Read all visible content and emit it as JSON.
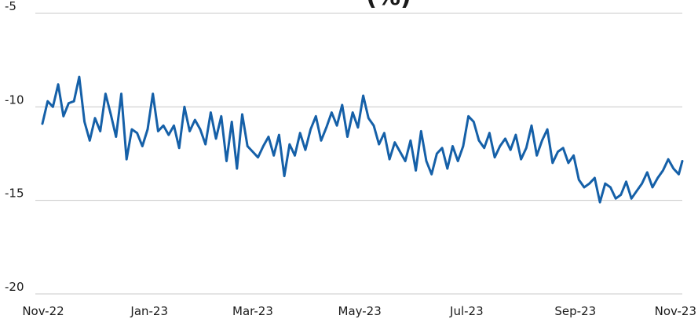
{
  "chart_data": {
    "type": "line",
    "title_fragment": "(%)",
    "xlabel": "",
    "ylabel": "",
    "ylim": [
      -20,
      -5
    ],
    "yticks": [
      -5,
      -10,
      -15,
      -20
    ],
    "ytick_labels": [
      "-5",
      "-10",
      "-15",
      "-20"
    ],
    "xlim": [
      "2022-11-01",
      "2023-11-01"
    ],
    "xticks": [
      "2022-11-01",
      "2023-01-01",
      "2023-03-01",
      "2023-05-01",
      "2023-07-01",
      "2023-09-01",
      "2023-11-01"
    ],
    "xtick_labels": [
      "Nov-22",
      "Jan-23",
      "Mar-23",
      "May-23",
      "Jul-23",
      "Sep-23",
      "Nov-23"
    ],
    "grid": true,
    "series": [
      {
        "color": "#1560a8",
        "x": [
          "2022-11-01",
          "2022-11-04",
          "2022-11-07",
          "2022-11-10",
          "2022-11-13",
          "2022-11-16",
          "2022-11-19",
          "2022-11-22",
          "2022-11-25",
          "2022-11-28",
          "2022-12-01",
          "2022-12-04",
          "2022-12-07",
          "2022-12-10",
          "2022-12-13",
          "2022-12-16",
          "2022-12-19",
          "2022-12-22",
          "2022-12-25",
          "2022-12-28",
          "2022-12-31",
          "2023-01-03",
          "2023-01-06",
          "2023-01-09",
          "2023-01-12",
          "2023-01-15",
          "2023-01-18",
          "2023-01-21",
          "2023-01-24",
          "2023-01-27",
          "2023-01-30",
          "2023-02-02",
          "2023-02-05",
          "2023-02-08",
          "2023-02-11",
          "2023-02-14",
          "2023-02-17",
          "2023-02-20",
          "2023-02-23",
          "2023-02-26",
          "2023-03-01",
          "2023-03-04",
          "2023-03-07",
          "2023-03-10",
          "2023-03-13",
          "2023-03-16",
          "2023-03-19",
          "2023-03-22",
          "2023-03-25",
          "2023-03-28",
          "2023-03-31",
          "2023-04-03",
          "2023-04-06",
          "2023-04-09",
          "2023-04-12",
          "2023-04-15",
          "2023-04-18",
          "2023-04-21",
          "2023-04-24",
          "2023-04-27",
          "2023-04-30",
          "2023-05-03",
          "2023-05-06",
          "2023-05-09",
          "2023-05-12",
          "2023-05-15",
          "2023-05-18",
          "2023-05-21",
          "2023-05-24",
          "2023-05-27",
          "2023-05-30",
          "2023-06-02",
          "2023-06-05",
          "2023-06-08",
          "2023-06-11",
          "2023-06-14",
          "2023-06-17",
          "2023-06-20",
          "2023-06-23",
          "2023-06-26",
          "2023-06-29",
          "2023-07-02",
          "2023-07-05",
          "2023-07-08",
          "2023-07-11",
          "2023-07-14",
          "2023-07-17",
          "2023-07-20",
          "2023-07-23",
          "2023-07-26",
          "2023-07-29",
          "2023-08-01",
          "2023-08-04",
          "2023-08-07",
          "2023-08-10",
          "2023-08-13",
          "2023-08-16",
          "2023-08-19",
          "2023-08-22",
          "2023-08-25",
          "2023-08-28",
          "2023-08-31",
          "2023-09-03",
          "2023-09-06",
          "2023-09-09",
          "2023-09-12",
          "2023-09-15",
          "2023-09-18",
          "2023-09-21",
          "2023-09-24",
          "2023-09-27",
          "2023-09-30",
          "2023-10-03",
          "2023-10-06",
          "2023-10-09",
          "2023-10-12",
          "2023-10-15",
          "2023-10-18",
          "2023-10-21",
          "2023-10-24",
          "2023-10-27",
          "2023-10-30",
          "2023-11-01"
        ],
        "values": [
          -10.9,
          -9.7,
          -10.0,
          -8.8,
          -10.5,
          -9.8,
          -9.7,
          -8.4,
          -10.8,
          -11.8,
          -10.6,
          -11.3,
          -9.3,
          -10.4,
          -11.6,
          -9.3,
          -12.8,
          -11.2,
          -11.4,
          -12.1,
          -11.2,
          -9.3,
          -11.3,
          -11.0,
          -11.5,
          -11.0,
          -12.2,
          -10.0,
          -11.3,
          -10.7,
          -11.2,
          -12.0,
          -10.3,
          -11.7,
          -10.5,
          -12.9,
          -10.8,
          -13.3,
          -10.4,
          -12.1,
          -12.4,
          -12.7,
          -12.1,
          -11.6,
          -12.6,
          -11.5,
          -13.7,
          -12.0,
          -12.6,
          -11.4,
          -12.3,
          -11.2,
          -10.5,
          -11.8,
          -11.1,
          -10.3,
          -11.0,
          -9.9,
          -11.6,
          -10.3,
          -11.1,
          -9.4,
          -10.6,
          -11.0,
          -12.0,
          -11.4,
          -12.8,
          -11.9,
          -12.4,
          -12.9,
          -11.8,
          -13.4,
          -11.3,
          -12.9,
          -13.6,
          -12.5,
          -12.2,
          -13.3,
          -12.1,
          -12.9,
          -12.1,
          -10.5,
          -10.8,
          -11.8,
          -12.2,
          -11.4,
          -12.7,
          -12.1,
          -11.7,
          -12.3,
          -11.5,
          -12.8,
          -12.2,
          -11.0,
          -12.6,
          -11.8,
          -11.2,
          -13.0,
          -12.4,
          -12.2,
          -13.0,
          -12.6,
          -13.9,
          -14.3,
          -14.1,
          -13.8,
          -15.1,
          -14.1,
          -14.3,
          -14.9,
          -14.7,
          -14.0,
          -14.9,
          -14.5,
          -14.1,
          -13.5,
          -14.3,
          -13.8,
          -13.4,
          -12.8,
          -13.3,
          -13.6,
          -12.9
        ]
      }
    ]
  }
}
